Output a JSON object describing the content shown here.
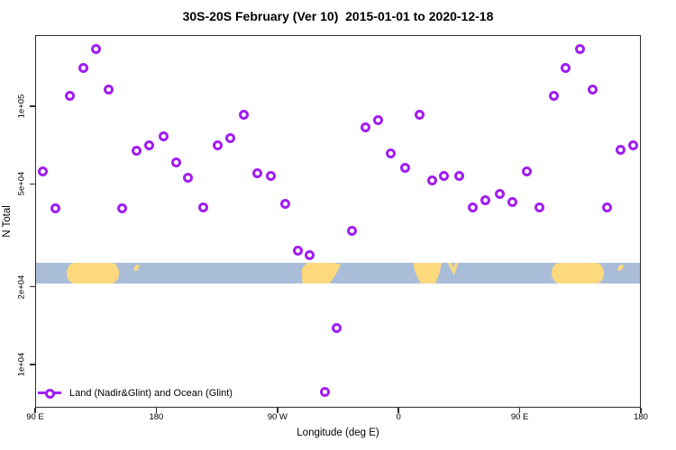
{
  "title": "30S-20S February (Ver 10)  2015-01-01 to 2020-12-18",
  "chart_data": {
    "type": "scatter",
    "title": "30S-20S February (Ver 10)  2015-01-01 to 2020-12-18",
    "xlabel": "Longitude (deg E)",
    "ylabel": "N Total",
    "x_axis": {
      "scale": "linear",
      "min": 90,
      "max": 540,
      "note": "longitude axis wraps: 90E to 180, through 90W and 0, back to 180",
      "ticks": [
        {
          "pos": 90,
          "label": "90 E"
        },
        {
          "pos": 180,
          "label": "180"
        },
        {
          "pos": 270,
          "label": "90 W"
        },
        {
          "pos": 360,
          "label": "0"
        },
        {
          "pos": 450,
          "label": "90 E"
        },
        {
          "pos": 540,
          "label": "180"
        }
      ]
    },
    "y_axis": {
      "scale": "log10",
      "min": 6800,
      "max": 188000,
      "ticks": [
        {
          "value": 100000,
          "label": "1e+05"
        },
        {
          "value": 50000,
          "label": "5e+04"
        },
        {
          "value": 20000,
          "label": "2e+04"
        },
        {
          "value": 10000,
          "label": "1e+04"
        }
      ]
    },
    "legend": {
      "position": "bottom-left",
      "entries": [
        {
          "label": "Land (Nadir&Glint) and Ocean (Glint)",
          "marker": "open-circle-on-line",
          "color": "#a11df0"
        }
      ]
    },
    "series": [
      {
        "name": "Land (Nadir&Glint) and Ocean (Glint)",
        "marker": "open-circle",
        "color": "#a11df0",
        "points": [
          [
            95.4,
            56100
          ],
          [
            105.4,
            40100
          ],
          [
            116.1,
            110000
          ],
          [
            125.5,
            141000
          ],
          [
            135.5,
            167000
          ],
          [
            144.9,
            116000
          ],
          [
            154.9,
            40100
          ],
          [
            165.0,
            67000
          ],
          [
            174.4,
            70300
          ],
          [
            185.1,
            76700
          ],
          [
            195.1,
            60800
          ],
          [
            203.8,
            52700
          ],
          [
            215.2,
            40400
          ],
          [
            225.3,
            70800
          ],
          [
            235.3,
            75500
          ],
          [
            244.7,
            93000
          ],
          [
            255.4,
            55200
          ],
          [
            264.8,
            53500
          ],
          [
            275.5,
            42000
          ],
          [
            285.5,
            27700
          ],
          [
            294.2,
            26600
          ],
          [
            305.0,
            7800
          ],
          [
            314.3,
            13800
          ],
          [
            325.7,
            32800
          ],
          [
            335.1,
            82500
          ],
          [
            345.1,
            88000
          ],
          [
            354.5,
            65400
          ],
          [
            364.6,
            57500
          ],
          [
            375.3,
            92300
          ],
          [
            384.7,
            51400
          ],
          [
            394.0,
            53900
          ],
          [
            404.8,
            53500
          ],
          [
            414.8,
            40700
          ],
          [
            424.2,
            43100
          ],
          [
            435.5,
            45600
          ],
          [
            444.3,
            42700
          ],
          [
            455.0,
            56100
          ],
          [
            464.4,
            40400
          ],
          [
            475.1,
            110000
          ],
          [
            484.4,
            141000
          ],
          [
            494.5,
            167000
          ],
          [
            504.5,
            116000
          ],
          [
            514.6,
            40400
          ],
          [
            524.6,
            67500
          ],
          [
            534.0,
            70800
          ]
        ]
      }
    ],
    "map_band": {
      "description": "20S-30S latitude world strip drawn across the plot",
      "ocean_color": "#a9bdd9",
      "land_color": "#fdd97e",
      "n_top": 24800,
      "n_bottom": 20600,
      "segments": [
        {
          "name": "australia",
          "lon_start": 113.5,
          "lon_end": 152.5,
          "shape": "australia"
        },
        {
          "name": "new-caledonia",
          "lon_start": 163.5,
          "lon_end": 167.0,
          "shape": "island"
        },
        {
          "name": "south-america",
          "lon_start": 288.0,
          "lon_end": 317.0,
          "shape": "south-america"
        },
        {
          "name": "africa",
          "lon_start": 371.0,
          "lon_end": 392.0,
          "shape": "africa"
        },
        {
          "name": "madagascar",
          "lon_start": 396.5,
          "lon_end": 404.5,
          "shape": "madagascar"
        },
        {
          "name": "australia-repeat",
          "lon_start": 473.5,
          "lon_end": 512.5,
          "shape": "australia"
        },
        {
          "name": "new-caledonia-repeat",
          "lon_start": 523.5,
          "lon_end": 527.0,
          "shape": "island"
        }
      ]
    }
  }
}
